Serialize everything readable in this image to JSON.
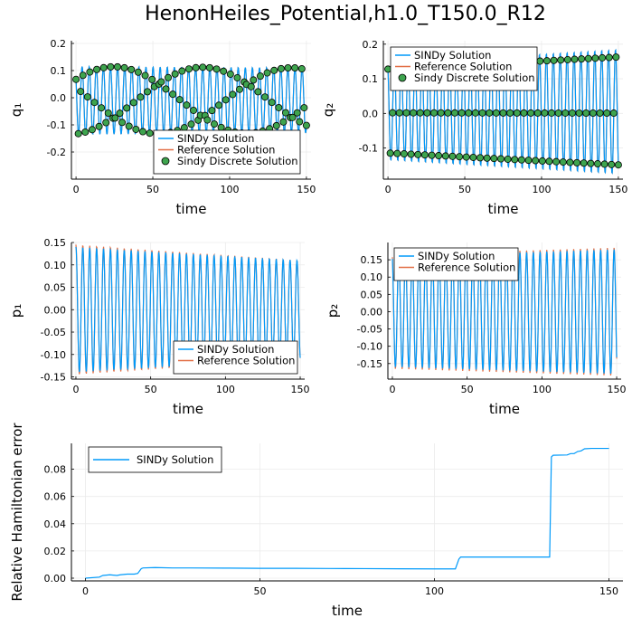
{
  "figure": {
    "title": "HenonHeiles_Potential,h1.0_T150.0_R12"
  },
  "colors": {
    "sindy": "#009afa",
    "reference": "#e26f46",
    "discrete_fill": "#3ea44e",
    "grid": "#ebebeb"
  },
  "chart_data": [
    {
      "id": "q1",
      "type": "line",
      "xlabel": "time",
      "ylabel": "q₁",
      "xlim": [
        -3,
        153
      ],
      "ylim": [
        -0.3,
        0.21
      ],
      "xticks": [
        0,
        50,
        100,
        150
      ],
      "yticks": [
        -0.2,
        -0.1,
        0.0,
        0.1,
        0.2
      ],
      "ytick_labels": [
        "-0.2",
        "-0.1",
        "0.0",
        "0.1",
        "0.2"
      ],
      "legend_position": "bottom-right",
      "series": [
        {
          "name": "SINDy Solution",
          "kind": "line",
          "color": "#009afa",
          "amp": [
            0.125,
            0.12
          ],
          "period": 4.62,
          "phase": 0.9,
          "offset": -0.01
        },
        {
          "name": "Reference Solution",
          "kind": "line",
          "color": "#e26f46",
          "amp": [
            0.125,
            0.12
          ],
          "period": 4.62,
          "phase": 0.9,
          "offset": -0.01
        },
        {
          "name": "Sindy Discrete Solution",
          "kind": "scatter",
          "color": "#3ea44e",
          "step": 1.5,
          "amp": [
            0.125,
            0.12
          ],
          "period": 4.62,
          "phase": 0.9,
          "offset": -0.01
        }
      ]
    },
    {
      "id": "q2",
      "type": "line",
      "xlabel": "time",
      "ylabel": "q₂",
      "xlim": [
        -3,
        153
      ],
      "ylim": [
        -0.19,
        0.21
      ],
      "xticks": [
        0,
        50,
        100,
        150
      ],
      "yticks": [
        -0.1,
        0.0,
        0.1,
        0.2
      ],
      "ytick_labels": [
        "-0.1",
        "0.0",
        "0.1",
        "0.2"
      ],
      "legend_position": "top-left",
      "series": [
        {
          "name": "SINDy Solution",
          "kind": "line",
          "color": "#009afa",
          "amp": [
            0.14,
            0.18
          ],
          "period": 4.5,
          "phase": 0.5,
          "offset": 0.005
        },
        {
          "name": "Reference Solution",
          "kind": "line",
          "color": "#e26f46",
          "amp": [
            0.14,
            0.18
          ],
          "period": 4.5,
          "phase": 0.5,
          "offset": 0.005
        },
        {
          "name": "Sindy Discrete Solution",
          "kind": "scatter",
          "color": "#3ea44e",
          "step": 1.5,
          "amp": [
            0.14,
            0.18
          ],
          "period": 4.5,
          "phase": 0.5,
          "offset": 0.005
        }
      ]
    },
    {
      "id": "p1",
      "type": "line",
      "xlabel": "time",
      "ylabel": "p₁",
      "xlim": [
        -3,
        153
      ],
      "ylim": [
        -0.155,
        0.15
      ],
      "xticks": [
        0,
        50,
        100,
        150
      ],
      "yticks": [
        -0.15,
        -0.1,
        -0.05,
        0.0,
        0.05,
        0.1,
        0.15
      ],
      "ytick_labels": [
        "-0.15",
        "-0.10",
        "-0.05",
        "0.00",
        "0.05",
        "0.10",
        "0.15"
      ],
      "legend_position": "bottom-right",
      "series": [
        {
          "name": "SINDy Solution",
          "kind": "line",
          "color": "#009afa",
          "amp": [
            0.14,
            0.11
          ],
          "period": 4.62,
          "phase": 0.0,
          "offset": 0.0
        },
        {
          "name": "Reference Solution",
          "kind": "line",
          "color": "#e26f46",
          "amp": [
            0.145,
            0.11
          ],
          "period": 4.62,
          "phase": 0.0,
          "offset": 0.0
        }
      ]
    },
    {
      "id": "p2",
      "type": "line",
      "xlabel": "time",
      "ylabel": "p₂",
      "xlim": [
        -3,
        153
      ],
      "ylim": [
        -0.195,
        0.2
      ],
      "xticks": [
        0,
        50,
        100,
        150
      ],
      "yticks": [
        -0.15,
        -0.1,
        -0.05,
        0.0,
        0.05,
        0.1,
        0.15
      ],
      "ytick_labels": [
        "-0.15",
        "-0.10",
        "-0.05",
        "0.00",
        "0.05",
        "0.10",
        "0.15"
      ],
      "legend_position": "top-left",
      "series": [
        {
          "name": "SINDy Solution",
          "kind": "line",
          "color": "#009afa",
          "amp": [
            0.16,
            0.18
          ],
          "period": 4.5,
          "phase": 0.3,
          "offset": 0.0
        },
        {
          "name": "Reference Solution",
          "kind": "line",
          "color": "#e26f46",
          "amp": [
            0.165,
            0.185
          ],
          "period": 4.5,
          "phase": 0.3,
          "offset": 0.0
        }
      ]
    },
    {
      "id": "ham",
      "type": "line",
      "xlabel": "time",
      "ylabel": "Relative Hamiltonian error",
      "xlim": [
        -4,
        154
      ],
      "ylim": [
        -0.002,
        0.099
      ],
      "xticks": [
        0,
        50,
        100,
        150
      ],
      "yticks": [
        0.0,
        0.02,
        0.04,
        0.06,
        0.08
      ],
      "ytick_labels": [
        "0.00",
        "0.02",
        "0.04",
        "0.06",
        "0.08"
      ],
      "legend_position": "top-left",
      "series": [
        {
          "name": "SINDy Solution",
          "kind": "line",
          "color": "#009afa",
          "x": [
            0,
            4,
            5,
            7,
            9,
            10,
            12,
            14,
            15,
            16,
            16.5,
            20,
            25,
            30,
            40,
            50,
            60,
            70,
            80,
            90,
            100,
            106,
            107,
            107.5,
            110,
            120,
            130,
            133,
            133.5,
            134,
            138,
            139,
            140,
            141,
            142,
            143,
            145,
            150
          ],
          "y": [
            0.0,
            0.0008,
            0.002,
            0.0025,
            0.002,
            0.0025,
            0.003,
            0.003,
            0.0035,
            0.007,
            0.0075,
            0.0078,
            0.0075,
            0.0075,
            0.0074,
            0.0072,
            0.0072,
            0.0071,
            0.007,
            0.0069,
            0.0068,
            0.0068,
            0.014,
            0.0155,
            0.0155,
            0.0155,
            0.0155,
            0.0155,
            0.089,
            0.0903,
            0.0905,
            0.0915,
            0.0915,
            0.093,
            0.0935,
            0.095,
            0.0953,
            0.0953
          ]
        }
      ]
    }
  ]
}
